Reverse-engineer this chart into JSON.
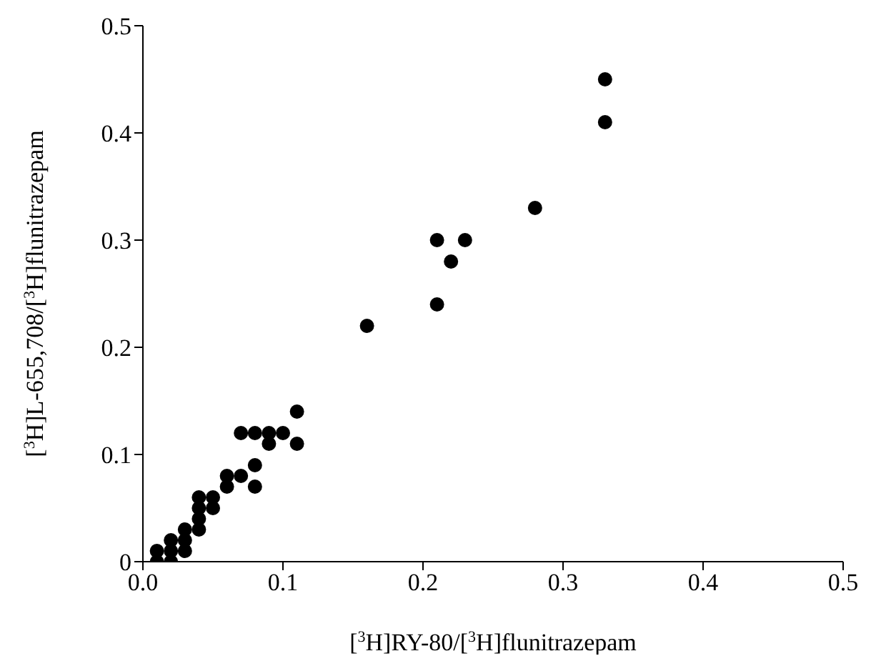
{
  "chart_data": {
    "type": "scatter",
    "xlabel": "[$^{3}$H]RY-80/[$^{3}$H]flunitrazepam",
    "ylabel": "[$^{3}$H]L-655,708/[$^{3}$H]flunitrazepam",
    "x": [
      0.01,
      0.01,
      0.02,
      0.02,
      0.02,
      0.03,
      0.03,
      0.03,
      0.04,
      0.04,
      0.04,
      0.04,
      0.05,
      0.05,
      0.06,
      0.06,
      0.07,
      0.07,
      0.08,
      0.08,
      0.08,
      0.09,
      0.09,
      0.1,
      0.11,
      0.11,
      0.16,
      0.21,
      0.21,
      0.22,
      0.23,
      0.28,
      0.33,
      0.33
    ],
    "series": [
      {
        "color": "#000000",
        "values": [
          0,
          0.01,
          0,
          0.01,
          0.02,
          0.01,
          0.02,
          0.03,
          0.03,
          0.04,
          0.05,
          0.06,
          0.05,
          0.06,
          0.07,
          0.08,
          0.08,
          0.12,
          0.07,
          0.09,
          0.12,
          0.11,
          0.12,
          0.12,
          0.11,
          0.14,
          0.22,
          0.24,
          0.3,
          0.28,
          0.3,
          0.33,
          0.41,
          0.45
        ]
      }
    ],
    "xlim": [
      0,
      0.5
    ],
    "xticks": [
      {
        "value": 0,
        "label": "0.0"
      },
      0.1,
      0.2,
      0.3,
      0.4,
      0.5
    ],
    "ylim": [
      0,
      0.5
    ],
    "yticks": [
      0,
      0.1,
      0.2,
      0.3,
      0.4,
      0.5
    ],
    "marker": "circle",
    "grid": false
  }
}
